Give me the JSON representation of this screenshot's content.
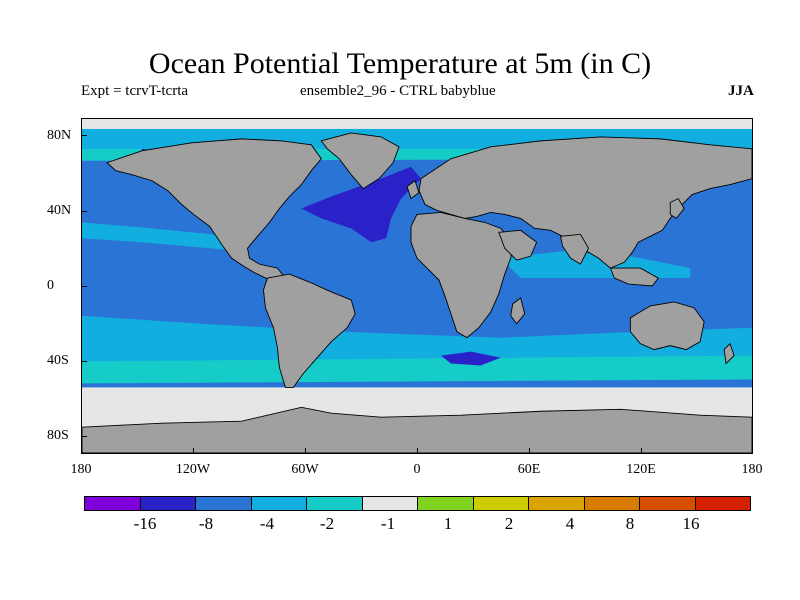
{
  "title": "Ocean Potential Temperature at 5m (in C)",
  "subtitle_left": "Expt = tcrvT-tcrta",
  "subtitle_center": "ensemble2_96 - CTRL babyblue",
  "season": "JJA",
  "map": {
    "land_color": "#a0a0a0",
    "coast_color": "#000000",
    "y_ticks": [
      "80N",
      "40N",
      "0",
      "40S",
      "80S"
    ],
    "x_ticks": [
      "180",
      "120W",
      "60W",
      "0",
      "60E",
      "120E",
      "180"
    ]
  },
  "colorbar": {
    "colors": [
      "#8000dc",
      "#2a22c8",
      "#2a74d6",
      "#12aee0",
      "#16ccc8",
      "#e6e6e6",
      "#80d21e",
      "#cccc00",
      "#d9a400",
      "#d87c00",
      "#d84e00",
      "#d22000"
    ],
    "labels": [
      "-16",
      "-8",
      "-4",
      "-2",
      "-1",
      "1",
      "2",
      "4",
      "8",
      "16"
    ]
  }
}
